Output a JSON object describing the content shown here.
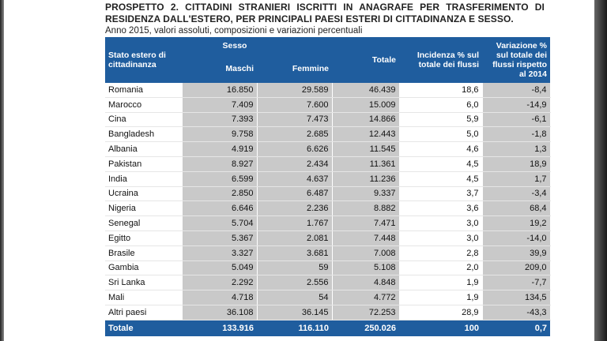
{
  "header": {
    "title": "PROSPETTO 2. CITTADINI STRANIERI ISCRITTI IN ANAGRAFE PER TRASFERIMENTO DI RESIDENZA DALL'ESTERO, PER PRINCIPALI PAESI ESTERI DI CITTADINANZA E SESSO.",
    "subtitle": "Anno 2015, valori assoluti, composizioni e variazioni percentuali"
  },
  "table": {
    "columns": {
      "country": "Stato estero di cittadinanza",
      "sex": "Sesso",
      "male": "Maschi",
      "female": "Femmine",
      "total": "Totale",
      "share": "Incidenza % sul totale dei flussi",
      "change": "Variazione % sul totale dei flussi rispetto al 2014"
    },
    "rows": [
      [
        "Romania",
        "16.850",
        "29.589",
        "46.439",
        "18,6",
        "-8,4"
      ],
      [
        "Marocco",
        "7.409",
        "7.600",
        "15.009",
        "6,0",
        "-14,9"
      ],
      [
        "Cina",
        "7.393",
        "7.473",
        "14.866",
        "5,9",
        "-6,1"
      ],
      [
        "Bangladesh",
        "9.758",
        "2.685",
        "12.443",
        "5,0",
        "-1,8"
      ],
      [
        "Albania",
        "4.919",
        "6.626",
        "11.545",
        "4,6",
        "1,3"
      ],
      [
        "Pakistan",
        "8.927",
        "2.434",
        "11.361",
        "4,5",
        "18,9"
      ],
      [
        "India",
        "6.599",
        "4.637",
        "11.236",
        "4,5",
        "1,7"
      ],
      [
        "Ucraina",
        "2.850",
        "6.487",
        "9.337",
        "3,7",
        "-3,4"
      ],
      [
        "Nigeria",
        "6.646",
        "2.236",
        "8.882",
        "3,6",
        "68,4"
      ],
      [
        "Senegal",
        "5.704",
        "1.767",
        "7.471",
        "3,0",
        "19,2"
      ],
      [
        "Egitto",
        "5.367",
        "2.081",
        "7.448",
        "3,0",
        "-14,0"
      ],
      [
        "Brasile",
        "3.327",
        "3.681",
        "7.008",
        "2,8",
        "39,9"
      ],
      [
        "Gambia",
        "5.049",
        "59",
        "5.108",
        "2,0",
        "209,0"
      ],
      [
        "Sri Lanka",
        "2.292",
        "2.556",
        "4.848",
        "1,9",
        "-7,7"
      ],
      [
        "Mali",
        "4.718",
        "54",
        "4.772",
        "1,9",
        "134,5"
      ],
      [
        "Altri paesi",
        "36.108",
        "36.145",
        "72.253",
        "28,9",
        "-43,3"
      ]
    ],
    "total": [
      "Totale",
      "133.916",
      "116.110",
      "250.026",
      "100",
      "0,7"
    ]
  }
}
